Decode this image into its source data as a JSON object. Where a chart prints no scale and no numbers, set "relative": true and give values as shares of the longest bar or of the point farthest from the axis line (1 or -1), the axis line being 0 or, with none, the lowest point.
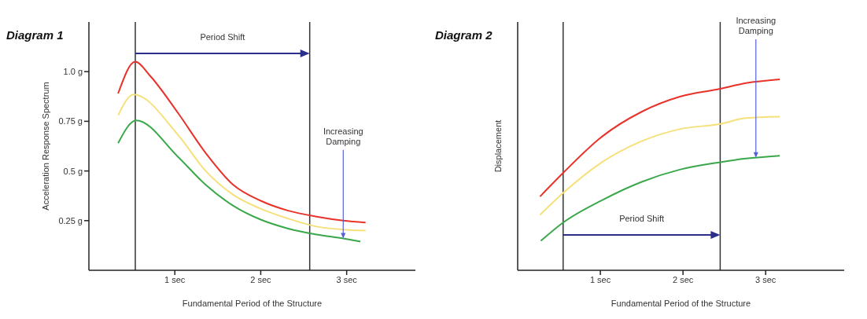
{
  "chart_data": [
    {
      "type": "line",
      "title": "Diagram 1",
      "xlabel": "Fundamental Period of the Structure",
      "ylabel": "Acceleration Response Spectrum",
      "xlim": [
        0,
        3.8
      ],
      "xticks": [
        {
          "value": 1,
          "label": "1 sec"
        },
        {
          "value": 2,
          "label": "2 sec"
        },
        {
          "value": 3,
          "label": "3 sec"
        }
      ],
      "ylim": [
        0,
        1.25
      ],
      "yticks": [
        {
          "value": 0.25,
          "label": "0.25 g"
        },
        {
          "value": 0.5,
          "label": "0.5 g"
        },
        {
          "value": 0.75,
          "label": "0.75 g"
        },
        {
          "value": 1,
          "label": "1.0 g"
        }
      ],
      "grid": false,
      "marker": "none",
      "line_style": "solid",
      "series": [
        {
          "color": "#e8322a",
          "x": [
            0.34,
            0.54,
            0.71,
            1.04,
            1.36,
            1.68,
            2.0,
            2.32,
            2.65,
            2.96,
            3.22
          ],
          "values": [
            0.89,
            1.05,
            0.98,
            0.79,
            0.59,
            0.43,
            0.35,
            0.3,
            0.27,
            0.25,
            0.24
          ]
        },
        {
          "color": "#f5e07a",
          "x": [
            0.34,
            0.52,
            1.04,
            1.36,
            1.68,
            2.0,
            2.32,
            2.65,
            2.96,
            3.22
          ],
          "values": [
            0.78,
            0.885,
            0.68,
            0.5,
            0.38,
            0.31,
            0.26,
            0.22,
            0.205,
            0.2
          ]
        },
        {
          "color": "#3aa84a",
          "x": [
            0.34,
            0.55,
            1.04,
            1.36,
            1.68,
            2.0,
            2.32,
            2.65,
            2.96,
            3.16
          ],
          "values": [
            0.64,
            0.755,
            0.57,
            0.43,
            0.325,
            0.255,
            0.21,
            0.18,
            0.16,
            0.145
          ]
        }
      ],
      "ref_lines": [
        {
          "axis": "x",
          "value": 0.54,
          "color": "#333333"
        },
        {
          "axis": "x",
          "value": 2.57,
          "color": "#333333"
        }
      ],
      "annotations": [
        "Period Shift",
        "Increasing Damping"
      ]
    },
    {
      "type": "line",
      "title": "Diagram 2",
      "xlabel": "Fundamental Period of the Structure",
      "ylabel": "Displacement",
      "relative": true,
      "xlim": [
        0,
        3.95
      ],
      "xticks": [
        {
          "value": 1,
          "label": "1 sec"
        },
        {
          "value": 2,
          "label": "2 sec"
        },
        {
          "value": 3,
          "label": "3 sec"
        }
      ],
      "grid": false,
      "marker": "none",
      "line_style": "solid",
      "series": [
        {
          "color": "#e8322a",
          "x": [
            0.27,
            0.55,
            1.02,
            1.5,
            1.97,
            2.45,
            2.76,
            3.17
          ],
          "values": [
            0.386,
            0.51,
            0.7,
            0.83,
            0.91,
            0.95,
            0.98,
            1
          ]
        },
        {
          "color": "#f5e07a",
          "x": [
            0.27,
            0.55,
            1.02,
            1.5,
            1.97,
            2.45,
            2.76,
            3.17
          ],
          "values": [
            0.29,
            0.405,
            0.566,
            0.676,
            0.74,
            0.766,
            0.797,
            0.804
          ]
        },
        {
          "color": "#3aa84a",
          "x": [
            0.28,
            0.55,
            1.02,
            1.5,
            1.97,
            2.45,
            2.76,
            3.17
          ],
          "values": [
            0.154,
            0.25,
            0.367,
            0.463,
            0.528,
            0.566,
            0.585,
            0.6
          ]
        }
      ],
      "ref_lines": [
        {
          "axis": "x",
          "value": 0.55,
          "color": "#333333"
        },
        {
          "axis": "x",
          "value": 2.45,
          "color": "#333333"
        }
      ],
      "annotations": [
        "Period Shift",
        "Increasing Damping"
      ]
    }
  ]
}
